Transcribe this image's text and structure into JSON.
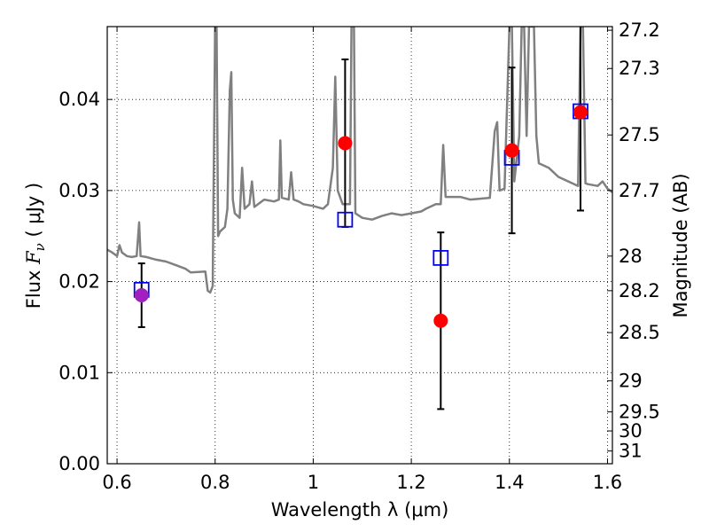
{
  "chart_data": {
    "type": "scatter",
    "xlabel": "Wavelength  λ (μm)",
    "ylabel": {
      "prefix": "Flux  ",
      "symbol": "F",
      "subscript": "ν",
      "unit": "  ( μJy )"
    },
    "ylabel_right": "Magnitude (AB)",
    "xlim": [
      0.58,
      1.61
    ],
    "ylim": [
      0.0,
      0.048
    ],
    "grid": true,
    "x_ticks": [
      0.6,
      0.8,
      1.0,
      1.2,
      1.4,
      1.6
    ],
    "x_tick_labels": [
      "0.6",
      "0.8",
      "1",
      "1.2",
      "1.4",
      "1.6"
    ],
    "y_ticks": [
      0.0,
      0.01,
      0.02,
      0.03,
      0.04
    ],
    "y_tick_labels": [
      "0.00",
      "0.01",
      "0.02",
      "0.03",
      "0.04"
    ],
    "right_ticks": [
      {
        "label": "27.2",
        "flux": 0.0476
      },
      {
        "label": "27.3",
        "flux": 0.0434
      },
      {
        "label": "27.5",
        "flux": 0.0361
      },
      {
        "label": "27.7",
        "flux": 0.03
      },
      {
        "label": "28",
        "flux": 0.0228
      },
      {
        "label": "28.2",
        "flux": 0.019
      },
      {
        "label": "28.5",
        "flux": 0.0144
      },
      {
        "label": "29",
        "flux": 0.0091
      },
      {
        "label": "29.5",
        "flux": 0.0057
      },
      {
        "label": "30",
        "flux": 0.0036
      },
      {
        "label": "31",
        "flux": 0.0014
      }
    ],
    "model_spectrum": {
      "color": "#808080",
      "points": [
        [
          0.58,
          0.0235
        ],
        [
          0.59,
          0.0232
        ],
        [
          0.6,
          0.0228
        ],
        [
          0.605,
          0.024
        ],
        [
          0.61,
          0.0232
        ],
        [
          0.62,
          0.0228
        ],
        [
          0.63,
          0.0227
        ],
        [
          0.64,
          0.0228
        ],
        [
          0.645,
          0.0265
        ],
        [
          0.648,
          0.0228
        ],
        [
          0.66,
          0.0227
        ],
        [
          0.68,
          0.0224
        ],
        [
          0.7,
          0.0222
        ],
        [
          0.72,
          0.0218
        ],
        [
          0.74,
          0.0214
        ],
        [
          0.75,
          0.021
        ],
        [
          0.78,
          0.0211
        ],
        [
          0.785,
          0.019
        ],
        [
          0.79,
          0.0188
        ],
        [
          0.795,
          0.0195
        ],
        [
          0.8,
          0.048
        ],
        [
          0.803,
          0.048
        ],
        [
          0.806,
          0.025
        ],
        [
          0.81,
          0.0255
        ],
        [
          0.82,
          0.026
        ],
        [
          0.825,
          0.028
        ],
        [
          0.83,
          0.041
        ],
        [
          0.833,
          0.043
        ],
        [
          0.836,
          0.029
        ],
        [
          0.84,
          0.0275
        ],
        [
          0.85,
          0.027
        ],
        [
          0.855,
          0.0325
        ],
        [
          0.86,
          0.028
        ],
        [
          0.87,
          0.0285
        ],
        [
          0.875,
          0.031
        ],
        [
          0.88,
          0.0282
        ],
        [
          0.9,
          0.029
        ],
        [
          0.92,
          0.0288
        ],
        [
          0.93,
          0.029
        ],
        [
          0.933,
          0.0355
        ],
        [
          0.936,
          0.0292
        ],
        [
          0.95,
          0.029
        ],
        [
          0.955,
          0.032
        ],
        [
          0.96,
          0.029
        ],
        [
          0.97,
          0.0288
        ],
        [
          0.98,
          0.0285
        ],
        [
          1.0,
          0.0283
        ],
        [
          1.02,
          0.028
        ],
        [
          1.03,
          0.0285
        ],
        [
          1.04,
          0.0325
        ],
        [
          1.045,
          0.0425
        ],
        [
          1.05,
          0.03
        ],
        [
          1.06,
          0.0285
        ],
        [
          1.075,
          0.0285
        ],
        [
          1.078,
          0.048
        ],
        [
          1.083,
          0.048
        ],
        [
          1.086,
          0.0275
        ],
        [
          1.1,
          0.027
        ],
        [
          1.12,
          0.0268
        ],
        [
          1.14,
          0.0272
        ],
        [
          1.16,
          0.0275
        ],
        [
          1.18,
          0.0273
        ],
        [
          1.2,
          0.0275
        ],
        [
          1.22,
          0.0277
        ],
        [
          1.23,
          0.028
        ],
        [
          1.25,
          0.0285
        ],
        [
          1.26,
          0.0285
        ],
        [
          1.265,
          0.035
        ],
        [
          1.27,
          0.0293
        ],
        [
          1.3,
          0.0293
        ],
        [
          1.32,
          0.029
        ],
        [
          1.36,
          0.0292
        ],
        [
          1.37,
          0.0365
        ],
        [
          1.375,
          0.0375
        ],
        [
          1.38,
          0.03
        ],
        [
          1.39,
          0.0302
        ],
        [
          1.4,
          0.048
        ],
        [
          1.405,
          0.048
        ],
        [
          1.41,
          0.031
        ],
        [
          1.42,
          0.036
        ],
        [
          1.425,
          0.048
        ],
        [
          1.43,
          0.048
        ],
        [
          1.435,
          0.036
        ],
        [
          1.44,
          0.048
        ],
        [
          1.45,
          0.048
        ],
        [
          1.455,
          0.036
        ],
        [
          1.46,
          0.033
        ],
        [
          1.48,
          0.0325
        ],
        [
          1.5,
          0.0315
        ],
        [
          1.52,
          0.031
        ],
        [
          1.54,
          0.0305
        ],
        [
          1.545,
          0.048
        ],
        [
          1.55,
          0.048
        ],
        [
          1.555,
          0.0308
        ],
        [
          1.56,
          0.0307
        ],
        [
          1.58,
          0.0305
        ],
        [
          1.59,
          0.031
        ],
        [
          1.6,
          0.0302
        ],
        [
          1.61,
          0.0298
        ]
      ]
    },
    "model_fluxes": {
      "marker": "open-square",
      "color": "#0000ff",
      "points": [
        {
          "x": 0.65,
          "y": 0.0191
        },
        {
          "x": 1.065,
          "y": 0.0268
        },
        {
          "x": 1.26,
          "y": 0.0226
        },
        {
          "x": 1.405,
          "y": 0.0336
        },
        {
          "x": 1.545,
          "y": 0.0387
        }
      ]
    },
    "observed": {
      "marker": "filled-circle",
      "errorbar_color": "#000000",
      "points": [
        {
          "x": 0.65,
          "y": 0.0185,
          "yerr_low": 0.0035,
          "yerr_high": 0.0035,
          "color": "#a020c0"
        },
        {
          "x": 1.065,
          "y": 0.0352,
          "yerr_low": 0.0092,
          "yerr_high": 0.0092,
          "color": "#ff0000"
        },
        {
          "x": 1.26,
          "y": 0.0157,
          "yerr_low": 0.0097,
          "yerr_high": 0.0097,
          "color": "#ff0000"
        },
        {
          "x": 1.405,
          "y": 0.0344,
          "yerr_low": 0.0091,
          "yerr_high": 0.0091,
          "color": "#ff0000"
        },
        {
          "x": 1.545,
          "y": 0.0386,
          "yerr_low": 0.0108,
          "yerr_high": 0.0108,
          "color": "#ff0000"
        }
      ]
    }
  }
}
